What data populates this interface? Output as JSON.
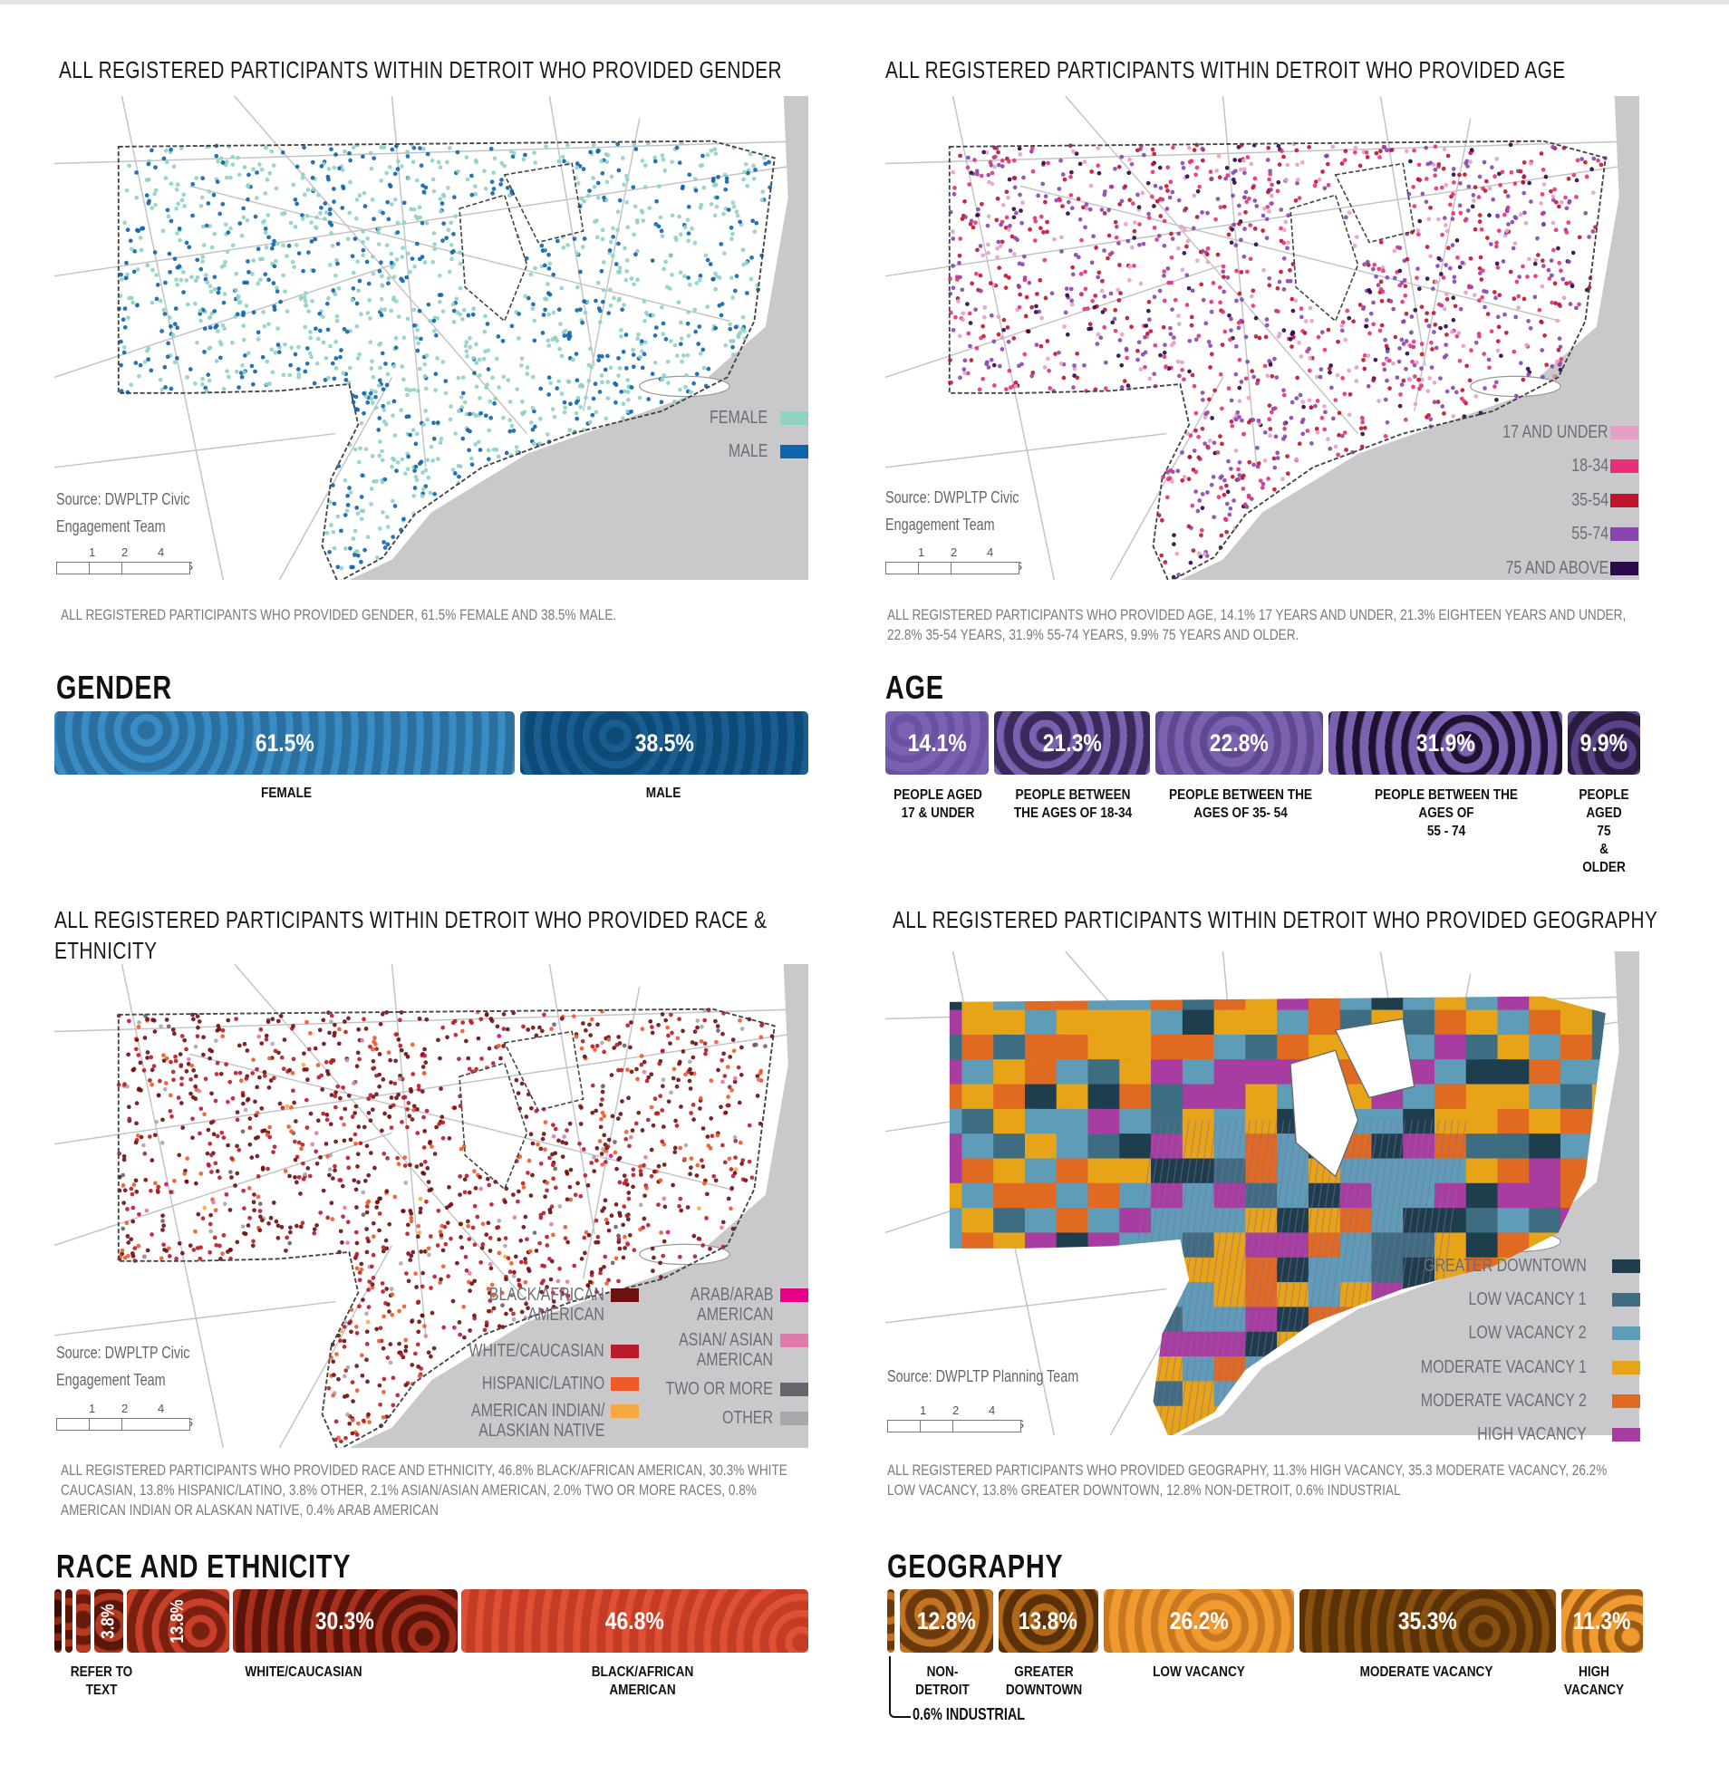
{
  "gender": {
    "title": "ALL REGISTERED PARTICIPANTS WITHIN DETROIT WHO PROVIDED GENDER",
    "legend": [
      {
        "label": "FEMALE",
        "color": "#8fd3c4",
        "share": 61.5
      },
      {
        "label": "MALE",
        "color": "#0e64ad",
        "share": 38.5
      }
    ],
    "source_lines": [
      "Source: DWPLTP Civic",
      "Engagement Team"
    ],
    "scale_ticks": [
      "1",
      "2",
      "4 MILES"
    ],
    "summary": "ALL REGISTERED PARTICIPANTS WHO PROVIDED GENDER, 61.5% FEMALE AND 38.5% MALE.",
    "heading": "GENDER",
    "segments": [
      {
        "value": 61.5,
        "text": "61.5%",
        "color": "#2b6f9f",
        "color2": "#3a8cc4"
      },
      {
        "value": 38.5,
        "text": "38.5%",
        "color": "#0e4a78",
        "color2": "#1a5d90"
      }
    ],
    "captions": [
      {
        "text": "FEMALE",
        "at": 30.75
      },
      {
        "text": "MALE",
        "at": 80.75
      }
    ]
  },
  "age": {
    "title": "ALL REGISTERED PARTICIPANTS WITHIN DETROIT WHO PROVIDED AGE",
    "legend": [
      {
        "label": "17 AND UNDER",
        "color": "#e6a0c8",
        "share": 14.1
      },
      {
        "label": "18-34",
        "color": "#e8307a",
        "share": 21.3
      },
      {
        "label": "35-54",
        "color": "#c0142c",
        "share": 22.8
      },
      {
        "label": "55-74",
        "color": "#8a46b0",
        "share": 31.9
      },
      {
        "label": "75 AND ABOVE",
        "color": "#2a0a4a",
        "share": 9.9
      }
    ],
    "source_lines": [
      "Source: DWPLTP Civic",
      "Engagement Team"
    ],
    "scale_ticks": [
      "1",
      "2",
      "4 MILES"
    ],
    "summary": "ALL REGISTERED PARTICIPANTS WHO PROVIDED AGE, 14.1% 17 YEARS AND UNDER, 21.3% EIGHTEEN YEARS AND UNDER, 22.8% 35-54 YEARS, 31.9% 55-74 YEARS, 9.9% 75 YEARS AND OLDER.",
    "heading": "AGE",
    "segments": [
      {
        "value": 14.1,
        "text": "14.1%",
        "color": "#7a62b0",
        "color2": "#6a52a0"
      },
      {
        "value": 21.3,
        "text": "21.3%",
        "color": "#3a2a5c",
        "color2": "#7a62b0"
      },
      {
        "value": 22.8,
        "text": "22.8%",
        "color": "#7a62b0",
        "color2": "#5e4890"
      },
      {
        "value": 31.9,
        "text": "31.9%",
        "color": "#7a62b0",
        "color2": "#1e1230"
      },
      {
        "value": 9.9,
        "text": "9.9%",
        "color": "#2a1c40",
        "color2": "#5a4488"
      }
    ],
    "captions": [
      {
        "text": "PEOPLE AGED\n17 & UNDER",
        "at": 7
      },
      {
        "text": "PEOPLE BETWEEN\nTHE AGES OF 18-34",
        "at": 24.8
      },
      {
        "text": "PEOPLE BETWEEN THE\nAGES OF 35- 54",
        "at": 47
      },
      {
        "text": "PEOPLE BETWEEN THE AGES OF\n55 - 74",
        "at": 74.3
      },
      {
        "text": "PEOPLE\nAGED 75\n& OLDER",
        "at": 95.2
      }
    ]
  },
  "race": {
    "title_lines": [
      "ALL REGISTERED PARTICIPANTS WITHIN DETROIT WHO PROVIDED RACE &",
      "ETHNICITY"
    ],
    "legend_left": [
      {
        "label": "BLACK/AFRICAN\nAMERICAN",
        "color": "#6e1010",
        "share": 46.8
      },
      {
        "label": "WHITE/CAUCASIAN",
        "color": "#b81c28",
        "share": 30.3
      },
      {
        "label": "HISPANIC/LATINO",
        "color": "#ee5a28",
        "share": 13.8
      },
      {
        "label": "AMERICAN INDIAN/\nALASKIAN NATIVE",
        "color": "#f8a840",
        "share": 0.8
      }
    ],
    "legend_right": [
      {
        "label": "ARAB/ARAB\nAMERICAN",
        "color": "#e8008a",
        "share": 0.4
      },
      {
        "label": "ASIAN/ ASIAN\nAMERICAN",
        "color": "#e07aaa",
        "share": 2.1
      },
      {
        "label": "TWO OR MORE",
        "color": "#66666c",
        "share": 2.0
      },
      {
        "label": "OTHER",
        "color": "#a8a8ac",
        "share": 3.8
      }
    ],
    "source_lines": [
      "Source:  DWPLTP Civic",
      "Engagement Team"
    ],
    "scale_ticks": [
      "1",
      "2",
      "4 MILES"
    ],
    "summary": "ALL REGISTERED PARTICIPANTS WHO PROVIDED RACE AND ETHNICITY, 46.8% BLACK/AFRICAN AMERICAN, 30.3% WHITE CAUCASIAN, 13.8% HISPANIC/LATINO, 3.8% OTHER, 2.1% ASIAN/ASIAN AMERICAN, 2.0% TWO OR MORE RACES, 0.8% AMERICAN INDIAN OR ALASKAN NATIVE, 0.4% ARAB AMERICAN",
    "heading": "RACE AND ETHNICITY",
    "segments": [
      {
        "value": 0.4,
        "text": "",
        "color": "#3a0c06",
        "color2": "#8a2a14"
      },
      {
        "value": 0.8,
        "text": "",
        "color": "#5a1408",
        "color2": "#a83218"
      },
      {
        "value": 2.0,
        "text": "",
        "color": "#6a1a0c",
        "color2": "#b83a20"
      },
      {
        "value": 3.8,
        "text": "3.8%",
        "color": "#5a160a",
        "color2": "#b03a20",
        "vertical": true
      },
      {
        "value": 13.8,
        "text": "13.8%",
        "color": "#7a2010",
        "color2": "#c8402a",
        "vertical": true
      },
      {
        "value": 30.3,
        "text": "30.3%",
        "color": "#5a140a",
        "color2": "#a8301c"
      },
      {
        "value": 46.8,
        "text": "46.8%",
        "color": "#c43c26",
        "color2": "#e05034"
      }
    ],
    "captions": [
      {
        "text": "REFER TO\nTEXT",
        "at": 6.3
      },
      {
        "text": "WHITE/CAUCASIAN",
        "at": 33
      },
      {
        "text": "BLACK/AFRICAN AMERICAN",
        "at": 78
      }
    ]
  },
  "geography": {
    "title": "ALL REGISTERED PARTICIPANTS WITHIN DETROIT WHO PROVIDED GEOGRAPHY",
    "legend": [
      {
        "label": "GREATER DOWNTOWN",
        "color": "#1e3e4e"
      },
      {
        "label": "LOW VACANCY 1",
        "color": "#3e6c80"
      },
      {
        "label": "LOW VACANCY 2",
        "color": "#5e9cb8"
      },
      {
        "label": "MODERATE VACANCY 1",
        "color": "#e8a418"
      },
      {
        "label": "MODERATE VACANCY 2",
        "color": "#e06a22"
      },
      {
        "label": "HIGH VACANCY",
        "color": "#a83ca0"
      }
    ],
    "source_lines": [
      "Source: DWPLTP Planning Team"
    ],
    "scale_ticks": [
      "1",
      "2",
      "4 MILES"
    ],
    "summary": "ALL REGISTERED PARTICIPANTS WHO PROVIDED GEOGRAPHY, 11.3% HIGH VACANCY, 35.3 MODERATE VACANCY, 26.2% LOW VACANCY, 13.8% GREATER DOWNTOWN, 12.8% NON-DETROIT, 0.6% INDUSTRIAL",
    "heading": "GEOGRAPHY",
    "segments": [
      {
        "value": 0.6,
        "text": "",
        "color": "#6a3a0a",
        "color2": "#c07020"
      },
      {
        "value": 12.8,
        "text": "12.8%",
        "color": "#6a3a0c",
        "color2": "#c07424"
      },
      {
        "value": 13.8,
        "text": "13.8%",
        "color": "#5a3008",
        "color2": "#b06818"
      },
      {
        "value": 26.2,
        "text": "26.2%",
        "color": "#f09a30",
        "color2": "#c87820"
      },
      {
        "value": 35.3,
        "text": "35.3%",
        "color": "#5a3208",
        "color2": "#8a5010"
      },
      {
        "value": 11.3,
        "text": "11.3%",
        "color": "#f09a30",
        "color2": "#9a5a14"
      }
    ],
    "captions": [
      {
        "text": "NON-\nDETROIT",
        "at": 7.3
      },
      {
        "text": "GREATER\nDOWNTOWN",
        "at": 20.8
      },
      {
        "text": "LOW VACANCY",
        "at": 41.2
      },
      {
        "text": "MODERATE VACANCY",
        "at": 71.4
      },
      {
        "text": "HIGH\nVACANCY",
        "at": 93.5
      }
    ],
    "industrial_note": "0.6% INDUSTRIAL"
  }
}
